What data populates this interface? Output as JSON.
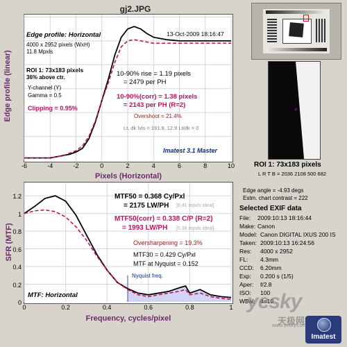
{
  "window_title": "gj2.JPG",
  "colors": {
    "black_curve": "#000000",
    "red_curve": "#c0105a",
    "purple_text": "#6a2a6a",
    "blue_label": "#0a2a8a",
    "gray_text": "#777777",
    "nyquist_fill": "#c8c8f0"
  },
  "top": {
    "title": "Edge profile: Horizontal",
    "timestamp": "13-Oct-2009 18:16:47",
    "size_line": "4000 x 2952 pixels (WxH)",
    "mpxls": "11.8 Mpxls",
    "roi": "ROI 1:  73x183 pixels",
    "roi_pos": "36% above ctr.",
    "channel": "Y-channel  (Y)",
    "gamma": "Gamma = 0.5",
    "clipping": "Clipping =  0.95%",
    "rise1": "10-90% rise = 1.19 pixels",
    "rise2": "= 2479 per PH",
    "corr1": "10-90%(corr) = 1.38 pixels",
    "corr2": "= 2143 per PH  (R=2)",
    "overshoot": "Overshoot = 21.4%",
    "levels": "Lt, dk lvls = 191.9, 12.9   Lt/dk = 0",
    "brand": "Imatest 3.1 Master",
    "ylabel": "Edge profile (linear)",
    "xlabel": "Pixels (Horizontal)"
  },
  "bottom": {
    "mtf50_1": "MTF50 = 0.368 Cy/Pxl",
    "mtf50_2": "= 2175 LW/PH",
    "mtf50_ideal": "[6.41 mpxls ideal]",
    "mtfcorr_1": "MTF50(corr) = 0.338 C/P  (R=2)",
    "mtfcorr_2": "= 1993 LW/PH",
    "mtfcorr_ideal": "[5.38 mpxls ideal]",
    "oversharpening": "Oversharpening = 19.3%",
    "mtf30": "MTF30 = 0.429 Cy/Pxl",
    "nyq_val": "MTF at Nyquist = 0.152",
    "nyq_label": "Nyquist freq.",
    "title": "MTF: Horizontal",
    "ylabel": "SFR (MTF)",
    "xlabel": "Frequency, cycles/pixel"
  },
  "side": {
    "roi_caption": "ROI 1:  73x183 pixels",
    "lrtb": "L R T B = 2036 2108  500 682",
    "edge_angle": "Edge angle = -4.93 degs",
    "contrast": "Estm. chart contrast = 222",
    "exif_title": "Selected EXIF data",
    "exif": [
      {
        "k": "File:",
        "v": "2009:10:13 18:16:44"
      },
      {
        "k": "Make:",
        "v": "Canon"
      },
      {
        "k": "Model:",
        "v": "Canon DIGITAL IXUS 200 IS"
      },
      {
        "k": "Taken:",
        "v": "2009:10:13 16:24:56"
      },
      {
        "k": "Res:",
        "v": "4000 x 2952"
      },
      {
        "k": "FL:",
        "v": "4.3mm"
      },
      {
        "k": "CCD:",
        "v": "6.20mm"
      },
      {
        "k": "Exp:",
        "v": "0.200 s  (1/5)"
      },
      {
        "k": "Aper:",
        "v": "f/2.8"
      },
      {
        "k": "ISO:",
        "v": "100"
      },
      {
        "k": "WBal:",
        "v": "4=10"
      }
    ],
    "watermark": "yesky",
    "watermark_cn": "天极网",
    "watermark_url": "www.yesky.com",
    "logo": "Imatest"
  },
  "chart_data": [
    {
      "type": "line",
      "title": "Edge profile: Horizontal",
      "xlabel": "Pixels (Horizontal)",
      "ylabel": "Edge profile (linear)",
      "xlim": [
        -6,
        10
      ],
      "x_ticks": [
        -6,
        -4,
        -2,
        0,
        2,
        4,
        6,
        8,
        10
      ],
      "ylim": [
        0,
        1.22
      ],
      "grid": true,
      "series": [
        {
          "x": [
            -6,
            -5,
            -4,
            -3,
            -2.5,
            -2,
            -1.5,
            -1,
            -0.5,
            0,
            0.5,
            1,
            1.5,
            2,
            2.5,
            3,
            3.5,
            4,
            5,
            6,
            7,
            8,
            9,
            10
          ],
          "values": [
            0.02,
            0.02,
            0.02,
            0.04,
            0.05,
            0.07,
            0.1,
            0.18,
            0.32,
            0.5,
            0.68,
            0.88,
            1.03,
            1.1,
            1.12,
            1.1,
            1.06,
            1.03,
            1.01,
            1.0,
            1.0,
            1.0,
            1.0,
            1.0
          ]
        },
        {
          "x": [
            -6,
            -5,
            -4,
            -3,
            -2.5,
            -2,
            -1.5,
            -1,
            -0.5,
            0,
            0.5,
            1,
            1.5,
            2,
            2.5,
            3,
            3.5,
            4,
            5,
            6,
            7,
            8,
            9,
            10
          ],
          "values": [
            0.02,
            0.02,
            0.02,
            0.04,
            0.06,
            0.08,
            0.12,
            0.2,
            0.33,
            0.5,
            0.65,
            0.82,
            0.95,
            1.0,
            1.01,
            1.0,
            0.99,
            0.98,
            0.98,
            0.98,
            0.98,
            0.98,
            0.98,
            0.98
          ]
        }
      ]
    },
    {
      "type": "line",
      "title": "MTF: Horizontal",
      "xlabel": "Frequency, cycles/pixel",
      "ylabel": "SFR (MTF)",
      "xlim": [
        0,
        1
      ],
      "x_ticks": [
        0,
        0.2,
        0.4,
        0.6,
        0.8,
        1
      ],
      "ylim": [
        0,
        1.35
      ],
      "y_ticks": [
        0,
        0.2,
        0.4,
        0.6,
        0.8,
        1,
        1.2
      ],
      "grid": true,
      "nyquist": 0.5,
      "series": [
        {
          "x": [
            0,
            0.05,
            0.1,
            0.15,
            0.2,
            0.25,
            0.3,
            0.35,
            0.4,
            0.45,
            0.5,
            0.55,
            0.6,
            0.65,
            0.7,
            0.75,
            0.78,
            0.8,
            0.85,
            0.9,
            0.95,
            1.0
          ],
          "values": [
            1.0,
            1.08,
            1.17,
            1.2,
            1.14,
            0.98,
            0.76,
            0.54,
            0.36,
            0.22,
            0.15,
            0.1,
            0.08,
            0.1,
            0.12,
            0.16,
            0.18,
            0.1,
            0.14,
            0.08,
            0.06,
            0.05
          ]
        },
        {
          "x": [
            0,
            0.05,
            0.1,
            0.15,
            0.2,
            0.25,
            0.3,
            0.35,
            0.4,
            0.45,
            0.5,
            0.55,
            0.6,
            0.65,
            0.7,
            0.75,
            0.78,
            0.8,
            0.85,
            0.9,
            0.95,
            1.0
          ],
          "values": [
            1.0,
            1.03,
            1.04,
            1.02,
            0.96,
            0.85,
            0.7,
            0.52,
            0.36,
            0.22,
            0.14,
            0.08,
            0.06,
            0.08,
            0.1,
            0.12,
            0.14,
            0.08,
            0.1,
            0.06,
            0.04,
            0.03
          ]
        }
      ]
    }
  ]
}
